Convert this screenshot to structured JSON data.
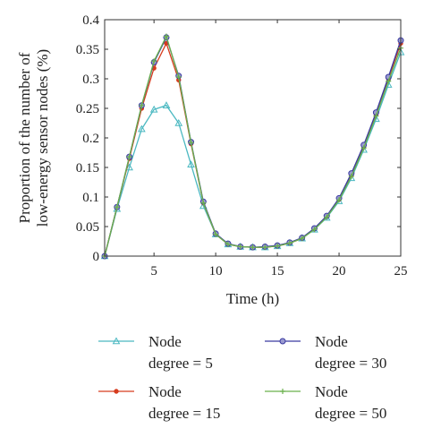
{
  "chart_data": {
    "type": "line",
    "xlabel": "Time (h)",
    "ylabel": [
      "Proportion of the number of",
      "low-energy sensor nodes (%)"
    ],
    "xlim": [
      1,
      25
    ],
    "ylim": [
      0,
      0.4
    ],
    "xticks": [
      5,
      10,
      15,
      20,
      25
    ],
    "yticks": [
      0,
      0.05,
      0.1,
      0.15,
      0.2,
      0.25,
      0.3,
      0.35,
      0.4
    ],
    "xtick_labels": [
      "5",
      "10",
      "15",
      "20",
      "25"
    ],
    "ytick_labels": [
      "0",
      "0.05",
      "0.1",
      "0.15",
      "0.2",
      "0.25",
      "0.3",
      "0.35",
      "0.4"
    ],
    "grid": false,
    "legend_position": "below",
    "x": [
      1,
      2,
      3,
      4,
      5,
      6,
      7,
      8,
      9,
      10,
      11,
      12,
      13,
      14,
      15,
      16,
      17,
      18,
      19,
      20,
      21,
      22,
      23,
      24,
      25
    ],
    "series": [
      {
        "name": [
          "Node",
          "degree = 5"
        ],
        "color": "#4ab8c1",
        "marker": "triangle",
        "values": [
          0,
          0.08,
          0.15,
          0.215,
          0.248,
          0.255,
          0.225,
          0.155,
          0.085,
          0.037,
          0.02,
          0.016,
          0.015,
          0.015,
          0.017,
          0.022,
          0.03,
          0.045,
          0.065,
          0.093,
          0.132,
          0.18,
          0.232,
          0.29,
          0.345
        ]
      },
      {
        "name": [
          "Node",
          "degree = 15"
        ],
        "color": "#d63c1e",
        "marker": "dot",
        "values": [
          0,
          0.083,
          0.165,
          0.25,
          0.318,
          0.36,
          0.298,
          0.19,
          0.09,
          0.037,
          0.02,
          0.016,
          0.015,
          0.015,
          0.017,
          0.022,
          0.03,
          0.046,
          0.067,
          0.096,
          0.137,
          0.185,
          0.24,
          0.3,
          0.36
        ]
      },
      {
        "name": [
          "Node",
          "degree = 30"
        ],
        "color": "#3a3aa0",
        "marker": "circle",
        "values": [
          0,
          0.083,
          0.168,
          0.255,
          0.328,
          0.37,
          0.305,
          0.193,
          0.092,
          0.038,
          0.021,
          0.016,
          0.015,
          0.016,
          0.018,
          0.023,
          0.031,
          0.047,
          0.068,
          0.098,
          0.14,
          0.188,
          0.243,
          0.303,
          0.365
        ]
      },
      {
        "name": [
          "Node",
          "degree = 50"
        ],
        "color": "#6ab04c",
        "marker": "plus",
        "values": [
          0,
          0.083,
          0.168,
          0.255,
          0.33,
          0.372,
          0.303,
          0.192,
          0.09,
          0.037,
          0.02,
          0.016,
          0.015,
          0.015,
          0.017,
          0.022,
          0.03,
          0.045,
          0.066,
          0.095,
          0.135,
          0.183,
          0.237,
          0.296,
          0.352
        ]
      }
    ]
  }
}
